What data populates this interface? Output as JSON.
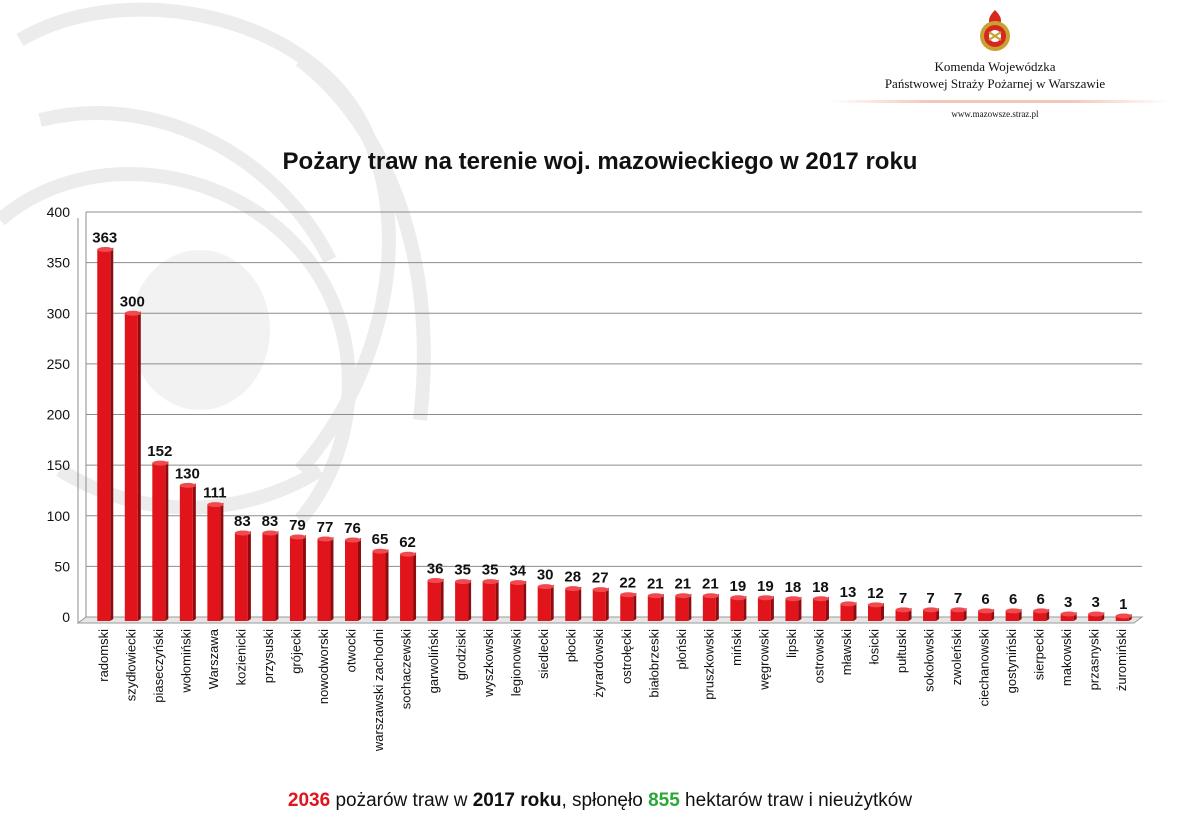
{
  "header": {
    "org_line1": "Komenda Wojewódzka",
    "org_line2": "Państwowej Straży Pożarnej w Warszawie",
    "website": "www.mazowsze.straz.pl",
    "logo_icon": "fire-brigade-emblem-icon"
  },
  "footer": {
    "fires_count": "2036",
    "text1": " pożarów traw w ",
    "year_text": "2017 roku",
    "text2": ", spłonęło ",
    "hectares": "855",
    "text3": " hektarów traw i nieużytków"
  },
  "colors": {
    "bar": "#e0141a",
    "accent_red": "#e0141a",
    "accent_green": "#2aa836"
  },
  "chart_data": {
    "type": "bar",
    "title": "Pożary traw na terenie woj. mazowieckiego w 2017 roku",
    "xlabel": "",
    "ylabel": "",
    "ylim": [
      0,
      400
    ],
    "yticks": [
      0,
      50,
      100,
      150,
      200,
      250,
      300,
      350,
      400
    ],
    "grid": true,
    "categories": [
      "radomski",
      "szydłowiecki",
      "piaseczyński",
      "wołomiński",
      "Warszawa",
      "kozienicki",
      "przysuski",
      "grójecki",
      "nowodworski",
      "otwocki",
      "warszawski zachodni",
      "sochaczewski",
      "garwoliński",
      "grodziski",
      "wyszkowski",
      "legionowski",
      "siedlecki",
      "płocki",
      "żyrardowski",
      "ostrołęcki",
      "białobrzeski",
      "płoński",
      "pruszkowski",
      "miński",
      "węgrowski",
      "lipski",
      "ostrowski",
      "mławski",
      "łosicki",
      "pułtuski",
      "sokołowski",
      "zwoleński",
      "ciechanowski",
      "gostyniński",
      "sierpecki",
      "makowski",
      "przasnyski",
      "żuromiński"
    ],
    "values": [
      363,
      300,
      152,
      130,
      111,
      83,
      83,
      79,
      77,
      76,
      65,
      62,
      36,
      35,
      35,
      34,
      30,
      28,
      27,
      22,
      21,
      21,
      21,
      19,
      19,
      18,
      18,
      13,
      12,
      7,
      7,
      7,
      6,
      6,
      6,
      3,
      3,
      1
    ]
  }
}
